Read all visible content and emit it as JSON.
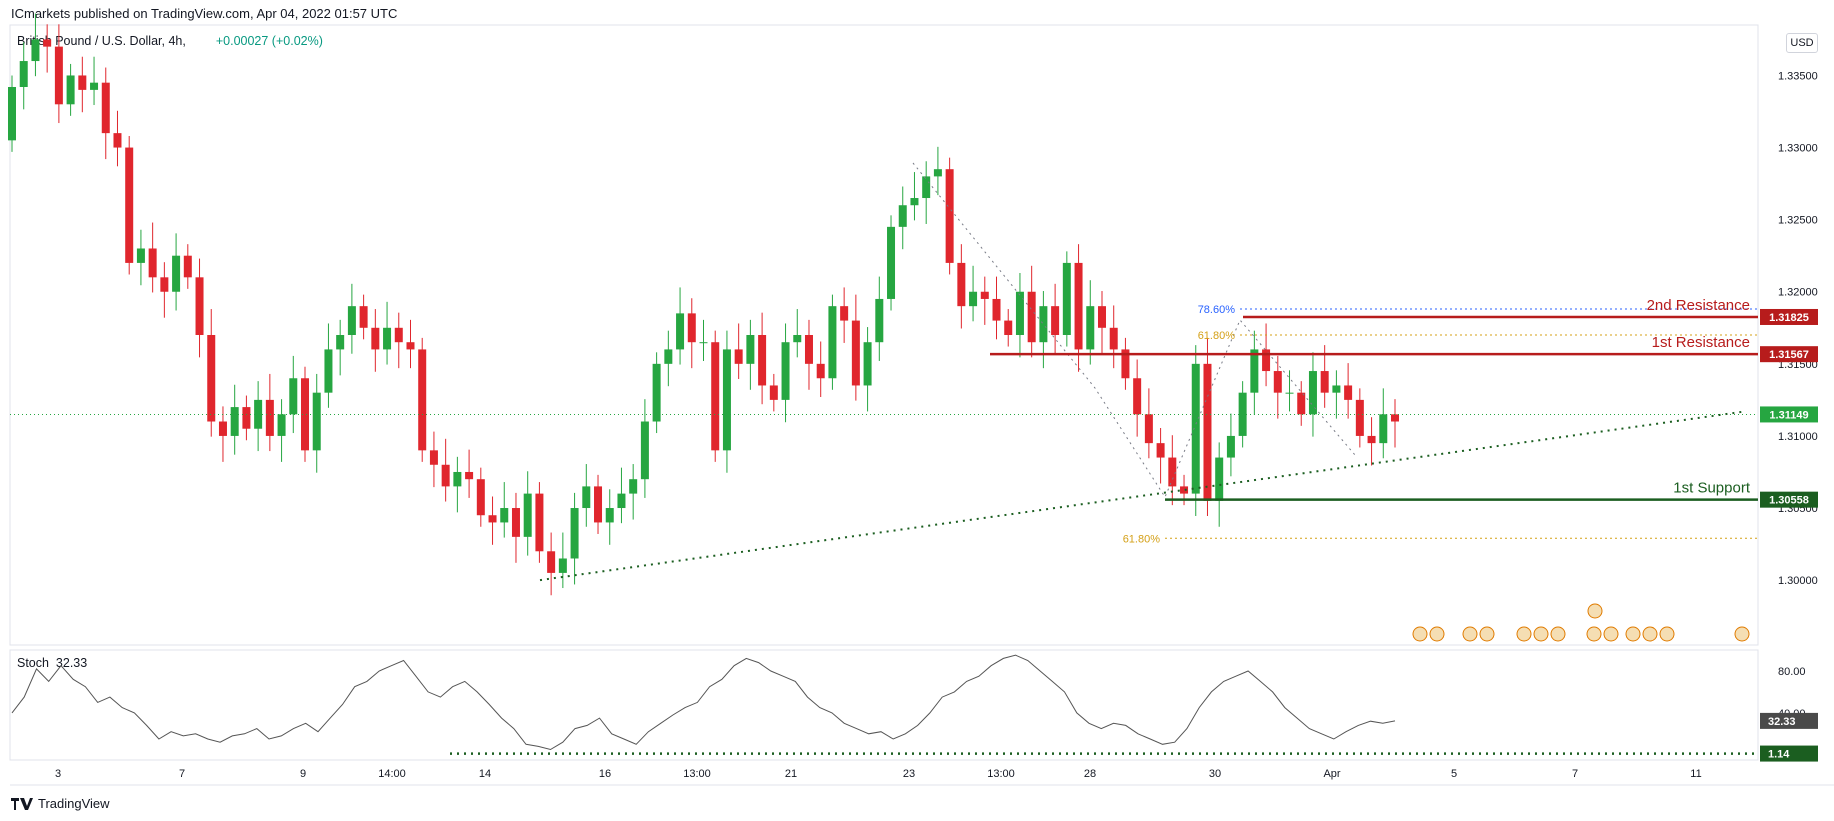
{
  "header": {
    "published": "ICmarkets published on TradingView.com, Apr 04, 2022 01:57 UTC",
    "symbol": "British Pound / U.S. Dollar, 4h,",
    "change": "+0.00027 (+0.02%)",
    "currency": "USD"
  },
  "stoch_legend": {
    "label": "Stoch",
    "value": "32.33"
  },
  "footer": {
    "brand": "TradingView"
  },
  "colors": {
    "up": "#26a641",
    "down": "#e0262d",
    "resistance": "#b71c1c",
    "support": "#1b5e20",
    "fib_gold": "#d4a017",
    "fib_blue": "#2962ff",
    "grid": "#e0e3eb"
  },
  "chart_data": [
    {
      "type": "candlestick",
      "title": "British Pound / U.S. Dollar, 4h",
      "y_ticks": [
        "1.33500",
        "1.33000",
        "1.32500",
        "1.32000",
        "1.31500",
        "1.31000",
        "1.30500",
        "1.30000"
      ],
      "ylim": [
        1.2955,
        1.3385
      ],
      "x_ticks": [
        "3",
        "7",
        "9",
        "14:00",
        "14",
        "16",
        "13:00",
        "21",
        "23",
        "13:00",
        "28",
        "30",
        "Apr",
        "5",
        "7",
        "11"
      ],
      "price_path": [
        1.3305,
        1.3342,
        1.336,
        1.3375,
        1.337,
        1.333,
        1.335,
        1.334,
        1.3345,
        1.331,
        1.33,
        1.322,
        1.323,
        1.321,
        1.32,
        1.3225,
        1.321,
        1.317,
        1.311,
        1.31,
        1.312,
        1.3105,
        1.3125,
        1.31,
        1.3115,
        1.314,
        1.309,
        1.313,
        1.316,
        1.317,
        1.319,
        1.3175,
        1.316,
        1.3175,
        1.3165,
        1.316,
        1.309,
        1.308,
        1.3065,
        1.3075,
        1.307,
        1.3045,
        1.304,
        1.305,
        1.303,
        1.306,
        1.302,
        1.3005,
        1.3015,
        1.305,
        1.3065,
        1.304,
        1.305,
        1.306,
        1.307,
        1.311,
        1.315,
        1.316,
        1.3185,
        1.3165,
        1.3165,
        1.309,
        1.316,
        1.315,
        1.317,
        1.3135,
        1.3125,
        1.3165,
        1.317,
        1.315,
        1.314,
        1.319,
        1.318,
        1.3135,
        1.3165,
        1.3195,
        1.3245,
        1.326,
        1.3265,
        1.328,
        1.3285,
        1.322,
        1.319,
        1.32,
        1.3195,
        1.318,
        1.317,
        1.32,
        1.3165,
        1.319,
        1.317,
        1.322,
        1.316,
        1.319,
        1.3175,
        1.316,
        1.314,
        1.3115,
        1.3095,
        1.3085,
        1.3065,
        1.306,
        1.315,
        1.3055,
        1.3085,
        1.31,
        1.313,
        1.316,
        1.3145,
        1.313,
        1.313,
        1.3115,
        1.3145,
        1.313,
        1.3135,
        1.3125,
        1.31,
        1.3095,
        1.3115,
        1.311
      ],
      "price_line": {
        "value": 1.31149,
        "label": "1.31149"
      },
      "levels": [
        {
          "name": "2nd Resistance",
          "value": 1.31825,
          "label": "1.31825",
          "x_from": "30"
        },
        {
          "name": "1st Resistance",
          "value": 1.31567,
          "label": "1.31567",
          "x_from": "13:00"
        },
        {
          "name": "1st Support",
          "value": 1.30558,
          "label": "1.30558",
          "x_from": "28"
        }
      ],
      "fib_levels": [
        {
          "label": "78.60%",
          "value": 1.3188
        },
        {
          "label": "61.80%",
          "value": 1.317
        },
        {
          "label": "61.80%",
          "value": 1.3029
        }
      ],
      "trendline": {
        "from": 1.3,
        "to": 1.3117
      }
    },
    {
      "type": "line",
      "title": "Stoch",
      "y_ticks": [
        "80.00",
        "40.00"
      ],
      "ylim": [
        -5,
        100
      ],
      "last_value": {
        "value": 32.33,
        "label": "32.33"
      },
      "support_line": {
        "value": 1.14,
        "label": "1.14"
      },
      "values": [
        40,
        55,
        82,
        70,
        85,
        72,
        65,
        50,
        55,
        45,
        40,
        28,
        15,
        22,
        18,
        20,
        15,
        12,
        18,
        20,
        25,
        15,
        18,
        25,
        30,
        22,
        35,
        48,
        65,
        70,
        80,
        85,
        90,
        75,
        60,
        55,
        65,
        70,
        60,
        48,
        35,
        25,
        10,
        8,
        5,
        12,
        25,
        28,
        35,
        20,
        15,
        10,
        22,
        30,
        38,
        45,
        50,
        65,
        72,
        85,
        92,
        88,
        80,
        75,
        70,
        55,
        45,
        40,
        30,
        25,
        20,
        22,
        15,
        20,
        28,
        40,
        55,
        60,
        70,
        75,
        85,
        92,
        95,
        90,
        80,
        70,
        60,
        40,
        30,
        25,
        30,
        28,
        20,
        15,
        10,
        12,
        25,
        45,
        60,
        70,
        75,
        80,
        70,
        60,
        45,
        35,
        25,
        20,
        15,
        22,
        28,
        32,
        30,
        32.33
      ]
    }
  ]
}
